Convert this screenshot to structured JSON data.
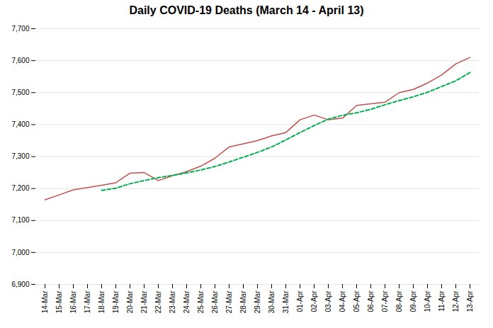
{
  "chart_data": {
    "type": "line",
    "title": "Daily COVID-19 Deaths (March 14 - April 13)",
    "categories": [
      "14-Mar",
      "15-Mar",
      "16-Mar",
      "17-Mar",
      "18-Mar",
      "19-Mar",
      "20-Mar",
      "21-Mar",
      "22-Mar",
      "23-Mar",
      "24-Mar",
      "25-Mar",
      "26-Mar",
      "27-Mar",
      "28-Mar",
      "29-Mar",
      "30-Mar",
      "31-Mar",
      "01-Apr",
      "02-Apr",
      "03-Apr",
      "04-Apr",
      "05-Apr",
      "06-Apr",
      "07-Apr",
      "08-Apr",
      "09-Apr",
      "10-Apr",
      "11-Apr",
      "12-Apr",
      "13-Apr"
    ],
    "series": [
      {
        "color": "#C0504D",
        "line_style": "solid",
        "values": [
          7165,
          7180,
          7196,
          7203,
          7210,
          7218,
          7248,
          7250,
          7225,
          7240,
          7253,
          7270,
          7295,
          7330,
          7340,
          7350,
          7365,
          7375,
          7415,
          7430,
          7415,
          7420,
          7460,
          7465,
          7470,
          7500,
          7510,
          7530,
          7555,
          7590,
          7610
        ]
      },
      {
        "color": "#00B050",
        "line_style": "dashed",
        "values": [
          null,
          null,
          null,
          null,
          7194,
          7201,
          7215,
          7225,
          7234,
          7241,
          7249,
          7258,
          7269,
          7283,
          7298,
          7313,
          7330,
          7352,
          7375,
          7397,
          7417,
          7429,
          7437,
          7448,
          7462,
          7475,
          7487,
          7501,
          7519,
          7537,
          7563
        ]
      }
    ],
    "ylim": [
      6900,
      7700
    ],
    "yticks": [
      {
        "value": 6900,
        "label": "6,900"
      },
      {
        "value": 7000,
        "label": "7,000"
      },
      {
        "value": 7100,
        "label": "7,100"
      },
      {
        "value": 7200,
        "label": "7,200"
      },
      {
        "value": 7300,
        "label": "7,300"
      },
      {
        "value": 7400,
        "label": "7,400"
      },
      {
        "value": 7500,
        "label": "7,500"
      },
      {
        "value": 7600,
        "label": "7,600"
      },
      {
        "value": 7700,
        "label": "7,700"
      }
    ],
    "grid": true
  }
}
